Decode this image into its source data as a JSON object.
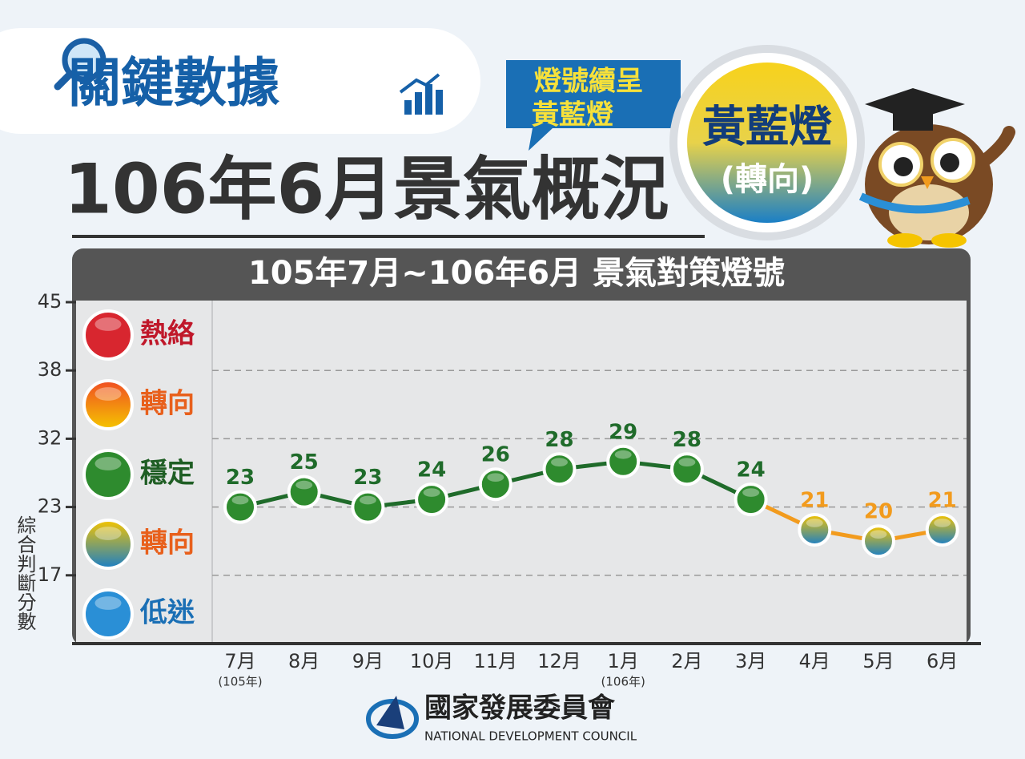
{
  "header": {
    "badge": "關鍵數據",
    "bubble": [
      "燈號續呈",
      "黃藍燈"
    ],
    "signal": "黃藍燈",
    "signal_note": "(轉向)",
    "title": "106年6月景氣概況"
  },
  "chart_data": {
    "type": "line",
    "title": "105年7月~106年6月 景氣對策燈號",
    "y_label": "綜合判斷分數",
    "categories": [
      "7月",
      "8月",
      "9月",
      "10月",
      "11月",
      "12月",
      "1月",
      "2月",
      "3月",
      "4月",
      "5月",
      "6月"
    ],
    "category_sublabels": [
      "(105年)",
      null,
      null,
      null,
      null,
      null,
      "(106年)",
      null,
      null,
      null,
      null,
      null
    ],
    "series": [
      {
        "color": "#1f6b2a",
        "shift_color": "#f29b1d",
        "values": [
          23,
          25,
          23,
          24,
          26,
          28,
          29,
          28,
          24,
          21,
          20,
          21
        ],
        "point_colors": [
          [
            "#2e8b2e"
          ],
          [
            "#2e8b2e"
          ],
          [
            "#2e8b2e"
          ],
          [
            "#2e8b2e"
          ],
          [
            "#2e8b2e"
          ],
          [
            "#2e8b2e"
          ],
          [
            "#2e8b2e"
          ],
          [
            "#2e8b2e"
          ],
          [
            "#2e8b2e"
          ],
          [
            "#f5c400",
            "#1a7fc6"
          ],
          [
            "#f5c400",
            "#1a7fc6"
          ],
          [
            "#f5c400",
            "#1a7fc6"
          ]
        ]
      }
    ],
    "ylim": [
      10,
      45
    ],
    "yticks": [
      45,
      38,
      32,
      23,
      17
    ],
    "grid": true,
    "legend": [
      {
        "name": "熱絡",
        "colors": [
          "#d8262f"
        ],
        "text_color": "#c0182a"
      },
      {
        "name": "轉向",
        "colors": [
          "#f04e23",
          "#f5c400"
        ],
        "text_color": "#e8601c"
      },
      {
        "name": "穩定",
        "colors": [
          "#2e8b2e"
        ],
        "text_color": "#1f5e24"
      },
      {
        "name": "轉向",
        "colors": [
          "#f5c400",
          "#1a7fc6"
        ],
        "text_color": "#e8601c"
      },
      {
        "name": "低迷",
        "colors": [
          "#2a8fd6"
        ],
        "text_color": "#1a6fb5"
      }
    ]
  },
  "footer": {
    "org": "國家發展委員會",
    "org_en": "NATIONAL DEVELOPMENT COUNCIL"
  }
}
